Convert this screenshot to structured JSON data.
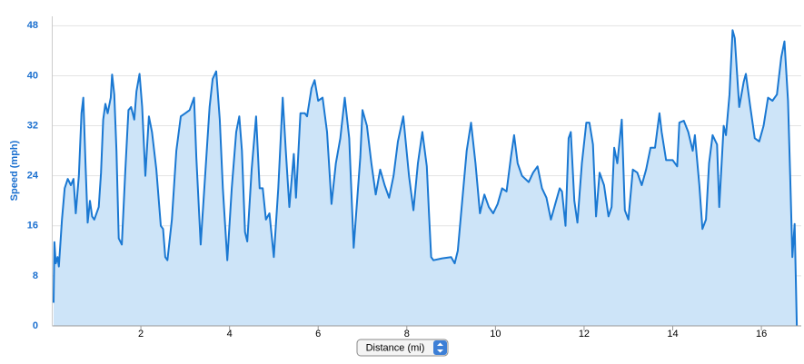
{
  "chart_data": {
    "type": "area",
    "y_label": "Speed (mph)",
    "x_label": "Distance (mi)",
    "color": "#1a78d2",
    "fill_color": "#cde4f8",
    "grid": true,
    "xlim": [
      0,
      16.9
    ],
    "ylim": [
      0,
      49.5
    ],
    "xticks": [
      2,
      4,
      6,
      8,
      10,
      12,
      14,
      16
    ],
    "yticks": [
      0,
      8,
      16,
      24,
      32,
      40,
      48
    ],
    "x": [
      0.03,
      0.05,
      0.08,
      0.12,
      0.15,
      0.22,
      0.28,
      0.35,
      0.42,
      0.48,
      0.53,
      0.6,
      0.66,
      0.7,
      0.75,
      0.8,
      0.85,
      0.9,
      0.95,
      1.05,
      1.1,
      1.15,
      1.2,
      1.25,
      1.32,
      1.35,
      1.4,
      1.45,
      1.5,
      1.57,
      1.65,
      1.72,
      1.78,
      1.85,
      1.9,
      1.97,
      2.03,
      2.1,
      2.18,
      2.25,
      2.35,
      2.45,
      2.5,
      2.55,
      2.6,
      2.7,
      2.8,
      2.9,
      3.0,
      3.1,
      3.2,
      3.25,
      3.35,
      3.45,
      3.55,
      3.62,
      3.7,
      3.78,
      3.85,
      3.95,
      4.05,
      4.15,
      4.22,
      4.28,
      4.35,
      4.4,
      4.5,
      4.6,
      4.68,
      4.75,
      4.82,
      4.9,
      5.0,
      5.1,
      5.2,
      5.27,
      5.35,
      5.45,
      5.5,
      5.6,
      5.7,
      5.75,
      5.85,
      5.92,
      6.0,
      6.1,
      6.2,
      6.3,
      6.4,
      6.5,
      6.6,
      6.7,
      6.8,
      6.95,
      7.0,
      7.1,
      7.2,
      7.3,
      7.4,
      7.5,
      7.6,
      7.7,
      7.8,
      7.92,
      8.05,
      8.15,
      8.25,
      8.35,
      8.45,
      8.5,
      8.55,
      8.6,
      8.8,
      9.0,
      9.08,
      9.15,
      9.25,
      9.35,
      9.45,
      9.55,
      9.65,
      9.75,
      9.85,
      9.95,
      10.05,
      10.15,
      10.25,
      10.35,
      10.42,
      10.5,
      10.6,
      10.75,
      10.85,
      10.95,
      11.05,
      11.15,
      11.25,
      11.35,
      11.45,
      11.5,
      11.58,
      11.65,
      11.7,
      11.78,
      11.85,
      11.95,
      12.05,
      12.12,
      12.2,
      12.27,
      12.35,
      12.45,
      12.55,
      12.62,
      12.68,
      12.75,
      12.85,
      12.92,
      13.0,
      13.1,
      13.2,
      13.3,
      13.4,
      13.5,
      13.6,
      13.7,
      13.75,
      13.85,
      14.0,
      14.1,
      14.15,
      14.25,
      14.35,
      14.45,
      14.5,
      14.6,
      14.67,
      14.75,
      14.82,
      14.9,
      15.0,
      15.05,
      15.15,
      15.2,
      15.28,
      15.35,
      15.4,
      15.5,
      15.6,
      15.65,
      15.75,
      15.85,
      15.95,
      16.05,
      16.15,
      16.25,
      16.35,
      16.45,
      16.52,
      16.6,
      16.65,
      16.7,
      16.75,
      16.8
    ],
    "values": [
      3.7,
      13.4,
      10,
      11,
      9.5,
      17,
      22,
      23.5,
      22.5,
      23.5,
      18,
      24,
      34,
      36.5,
      26,
      16.5,
      20,
      17.5,
      17,
      19,
      24.5,
      33,
      35.5,
      34,
      36.5,
      40.2,
      37,
      28,
      14,
      13,
      25,
      34.5,
      35,
      33,
      37.5,
      40.3,
      35,
      24,
      33.5,
      31,
      25,
      16,
      15.5,
      11,
      10.5,
      17,
      28,
      33.5,
      34,
      34.5,
      36.5,
      27,
      13,
      24,
      35,
      39.5,
      40.7,
      33,
      22,
      10.5,
      22,
      31,
      33.5,
      28,
      15,
      13.5,
      25,
      33.5,
      22,
      22,
      17,
      18,
      11,
      22,
      36.5,
      28,
      19,
      27.5,
      20.5,
      34,
      34,
      33.5,
      38,
      39.3,
      36,
      36.5,
      31,
      19.5,
      26,
      30,
      36.5,
      30,
      12.5,
      27,
      34.5,
      32,
      26,
      21,
      25,
      22.5,
      20.5,
      24,
      29.5,
      33.5,
      24,
      18.5,
      26,
      31,
      25.5,
      18,
      11,
      10.5,
      10.8,
      11,
      10,
      12,
      20,
      28,
      32.5,
      26,
      18,
      21,
      19,
      18,
      19.5,
      22,
      21.5,
      27,
      30.5,
      26,
      24,
      23,
      24.5,
      25.5,
      22,
      20.5,
      17,
      19.5,
      22,
      21.5,
      16,
      30,
      31,
      20,
      16.5,
      26,
      32.5,
      32.5,
      29,
      17.5,
      24.5,
      22.5,
      17.5,
      19,
      28.5,
      26,
      33,
      18.5,
      17,
      25,
      24.5,
      22.5,
      25,
      28.5,
      28.5,
      34,
      31,
      26.5,
      26.5,
      25.5,
      32.5,
      32.8,
      31,
      28,
      30.5,
      22.5,
      15.5,
      17,
      26,
      30.5,
      29,
      19,
      32,
      30.5,
      37,
      47.3,
      46,
      35,
      39,
      40.3,
      35,
      30,
      29.5,
      32,
      36.5,
      36,
      37,
      43,
      45.5,
      36,
      24,
      11,
      16.3,
      0
    ]
  }
}
